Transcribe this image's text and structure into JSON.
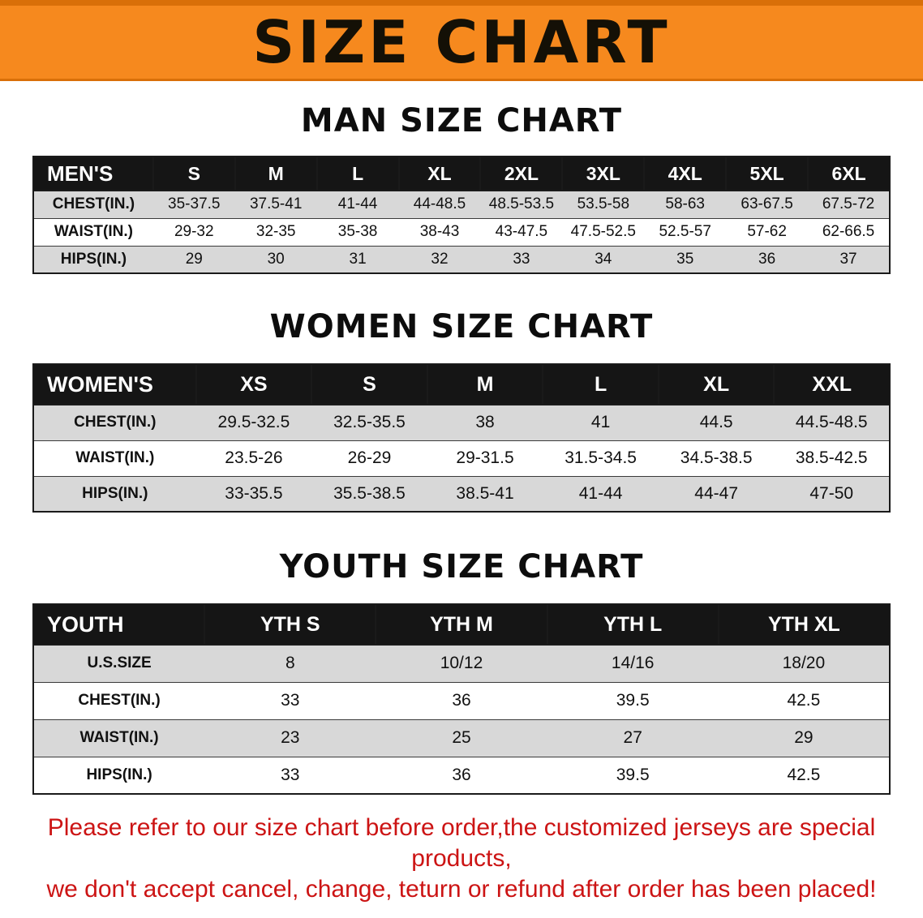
{
  "banner": {
    "title": "SIZE CHART"
  },
  "colors": {
    "banner_bg": "#f6891e",
    "banner_edge": "#d96f08",
    "header_bg": "#151515",
    "row_shade": "#d8d8d8",
    "disclaimer_color": "#cc1414"
  },
  "sections": [
    {
      "heading": "MAN SIZE CHART",
      "table": {
        "label": "MEN'S",
        "sizes": [
          "S",
          "M",
          "L",
          "XL",
          "2XL",
          "3XL",
          "4XL",
          "5XL",
          "6XL"
        ],
        "rows": [
          {
            "label": "CHEST(IN.)",
            "values": [
              "35-37.5",
              "37.5-41",
              "41-44",
              "44-48.5",
              "48.5-53.5",
              "53.5-58",
              "58-63",
              "63-67.5",
              "67.5-72"
            ]
          },
          {
            "label": "WAIST(IN.)",
            "values": [
              "29-32",
              "32-35",
              "35-38",
              "38-43",
              "43-47.5",
              "47.5-52.5",
              "52.5-57",
              "57-62",
              "62-66.5"
            ]
          },
          {
            "label": "HIPS(IN.)",
            "values": [
              "29",
              "30",
              "31",
              "32",
              "33",
              "34",
              "35",
              "36",
              "37"
            ]
          }
        ]
      }
    },
    {
      "heading": "WOMEN SIZE CHART",
      "table": {
        "label": "WOMEN'S",
        "sizes": [
          "XS",
          "S",
          "M",
          "L",
          "XL",
          "XXL"
        ],
        "rows": [
          {
            "label": "CHEST(IN.)",
            "values": [
              "29.5-32.5",
              "32.5-35.5",
              "38",
              "41",
              "44.5",
              "44.5-48.5"
            ]
          },
          {
            "label": "WAIST(IN.)",
            "values": [
              "23.5-26",
              "26-29",
              "29-31.5",
              "31.5-34.5",
              "34.5-38.5",
              "38.5-42.5"
            ]
          },
          {
            "label": "HIPS(IN.)",
            "values": [
              "33-35.5",
              "35.5-38.5",
              "38.5-41",
              "41-44",
              "44-47",
              "47-50"
            ]
          }
        ]
      }
    },
    {
      "heading": "YOUTH SIZE CHART",
      "table": {
        "label": "YOUTH",
        "sizes": [
          "YTH S",
          "YTH M",
          "YTH L",
          "YTH XL"
        ],
        "rows": [
          {
            "label": "U.S.SIZE",
            "values": [
              "8",
              "10/12",
              "14/16",
              "18/20"
            ]
          },
          {
            "label": "CHEST(IN.)",
            "values": [
              "33",
              "36",
              "39.5",
              "42.5"
            ]
          },
          {
            "label": "WAIST(IN.)",
            "values": [
              "23",
              "25",
              "27",
              "29"
            ]
          },
          {
            "label": "HIPS(IN.)",
            "values": [
              "33",
              "36",
              "39.5",
              "42.5"
            ]
          }
        ]
      }
    }
  ],
  "disclaimer": {
    "line1": "Please refer to our size chart before order,the customized jerseys are special products,",
    "line2": "we don't accept cancel, change, teturn or refund after order has been placed!"
  }
}
